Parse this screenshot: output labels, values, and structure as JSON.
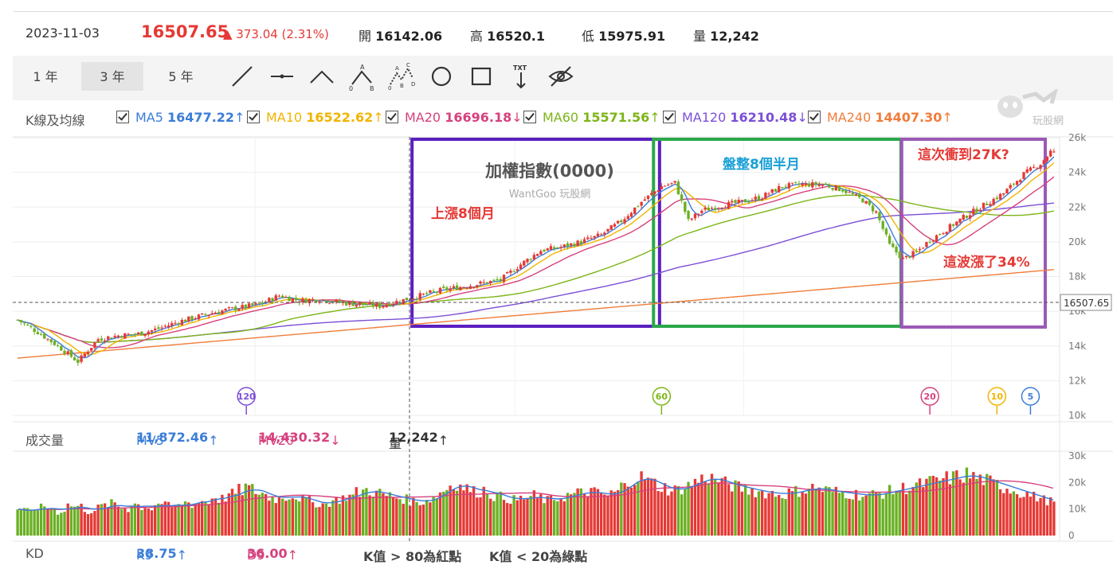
{
  "quote": {
    "date": "2023-11-03",
    "price": "16507.65",
    "change": "▲ 373.04 (2.31%)",
    "open_label": "開",
    "open": "16142.06",
    "high_label": "高",
    "high": "16520.1",
    "low_label": "低",
    "low": "15975.91",
    "volume_label": "量",
    "volume": "12,242"
  },
  "periods": [
    {
      "label": "1 年",
      "active": false
    },
    {
      "label": "3 年",
      "active": true
    },
    {
      "label": "5 年",
      "active": false
    }
  ],
  "tools": [
    "line-tool-icon",
    "horizontal-line-icon",
    "polyline-icon",
    "abc-pattern-icon",
    "abcde-pattern-icon",
    "circle-tool-icon",
    "rectangle-tool-icon",
    "text-tool-icon",
    "hide-drawings-icon"
  ],
  "tool_text": "TXT",
  "tool_abc": [
    "A",
    "0",
    "B"
  ],
  "tool_abcde": [
    "A",
    "C",
    "0",
    "B",
    "D"
  ],
  "ma": {
    "title": "K線及均線",
    "items": [
      {
        "name": "MA5",
        "value": "16477.22",
        "arrow": "↑",
        "color": "#3b7dd8"
      },
      {
        "name": "MA10",
        "value": "16522.62",
        "arrow": "↑",
        "color": "#f0b400"
      },
      {
        "name": "MA20",
        "value": "16696.18",
        "arrow": "↓",
        "color": "#d6417e"
      },
      {
        "name": "MA60",
        "value": "15571.56",
        "arrow": "↑",
        "color": "#7cb518"
      },
      {
        "name": "MA120",
        "value": "16210.48",
        "arrow": "↓",
        "color": "#7b4fd6"
      },
      {
        "name": "MA240",
        "value": "14407.30",
        "arrow": "↑",
        "color": "#f07c3a"
      }
    ]
  },
  "logo_text": "玩股網",
  "volume": {
    "title": "成交量",
    "mv5_label": "MV5",
    "mv5": "11,872.46",
    "mv5_arrow": "↑",
    "mv20_label": "MV20",
    "mv20": "14,430.32",
    "mv20_arrow": "↓",
    "vol_label": "量",
    "vol": "12,242",
    "vol_arrow": "↑"
  },
  "kd": {
    "title": "KD",
    "k_label": "K9",
    "k": "38.75",
    "k_arrow": "↑",
    "d_label": "D9",
    "d": "36.00",
    "d_arrow": "↑",
    "note1": "K值 > 80為紅點",
    "note2": "K值 < 20為綠點"
  },
  "chart_data": {
    "type": "candlestick",
    "price_axis": {
      "ticks": [
        "26k",
        "24k",
        "22k",
        "20k",
        "18k",
        "16k",
        "14k",
        "12k",
        "10k"
      ],
      "range": [
        10000,
        26000
      ]
    },
    "current_price_label": "16507.65",
    "volume_axis": {
      "ticks": [
        "30k",
        "20k",
        "10k",
        "0"
      ],
      "range": [
        0,
        30000
      ]
    },
    "watermark_title": "加權指數(0000)",
    "watermark_sub": "WantGoo 玩股網",
    "ma_markers": [
      {
        "label": "120",
        "color": "#7b4fd6",
        "bar": 72
      },
      {
        "label": "60",
        "color": "#7cb518",
        "bar": 192
      },
      {
        "label": "20",
        "color": "#d6417e",
        "bar": 272
      },
      {
        "label": "10",
        "color": "#f0b400",
        "bar": 292
      },
      {
        "label": "5",
        "color": "#3b7dd8",
        "bar": 302
      }
    ],
    "annotations": [
      {
        "text": "上漲8個月",
        "color": "#e53935"
      },
      {
        "text": "盤整8個半月",
        "color": "#1aa0d8"
      },
      {
        "text": "這次衝到27K?",
        "color": "#e53935"
      },
      {
        "text": "這波漲了34%",
        "color": "#e53935"
      }
    ],
    "boxes": [
      {
        "from_bar": 120,
        "to_bar": 190,
        "color": "#5b1fc0"
      },
      {
        "from_bar": 192,
        "to_bar": 262,
        "color": "#2aa84a"
      },
      {
        "from_bar": 266,
        "to_bar": 305,
        "color": "#9b59b6"
      }
    ],
    "price_path": [
      [
        0,
        15500
      ],
      [
        6,
        14800
      ],
      [
        12,
        14000
      ],
      [
        18,
        13100
      ],
      [
        24,
        14400
      ],
      [
        30,
        14600
      ],
      [
        36,
        14700
      ],
      [
        42,
        15000
      ],
      [
        48,
        15400
      ],
      [
        54,
        15700
      ],
      [
        60,
        16000
      ],
      [
        66,
        16200
      ],
      [
        72,
        16400
      ],
      [
        78,
        16900
      ],
      [
        84,
        16600
      ],
      [
        90,
        16700
      ],
      [
        96,
        16500
      ],
      [
        102,
        16400
      ],
      [
        108,
        16300
      ],
      [
        114,
        16600
      ],
      [
        120,
        16900
      ],
      [
        126,
        17200
      ],
      [
        132,
        17400
      ],
      [
        138,
        17600
      ],
      [
        144,
        17800
      ],
      [
        150,
        18700
      ],
      [
        156,
        19500
      ],
      [
        162,
        19700
      ],
      [
        168,
        20000
      ],
      [
        174,
        20400
      ],
      [
        180,
        21200
      ],
      [
        186,
        22300
      ],
      [
        192,
        23200
      ],
      [
        196,
        23400
      ],
      [
        200,
        21200
      ],
      [
        204,
        21800
      ],
      [
        210,
        22100
      ],
      [
        216,
        22300
      ],
      [
        222,
        22600
      ],
      [
        228,
        23200
      ],
      [
        234,
        23300
      ],
      [
        240,
        23300
      ],
      [
        246,
        23000
      ],
      [
        252,
        22400
      ],
      [
        256,
        21700
      ],
      [
        260,
        19800
      ],
      [
        264,
        19000
      ],
      [
        268,
        19400
      ],
      [
        272,
        20100
      ],
      [
        276,
        20600
      ],
      [
        282,
        21400
      ],
      [
        288,
        22100
      ],
      [
        294,
        22800
      ],
      [
        300,
        23900
      ],
      [
        305,
        24500
      ],
      [
        308,
        25200
      ]
    ],
    "volume_values": [
      10000,
      9500,
      9000,
      9800,
      10500,
      11000,
      10200,
      9600,
      9000,
      10000,
      11500,
      10800,
      11000,
      10000,
      9000,
      9500,
      10400,
      11200,
      11800,
      12000,
      11000,
      10500,
      10000,
      12000,
      11500,
      10800,
      11000,
      10000,
      11800,
      12500,
      11200,
      10600,
      11000,
      12000,
      12500,
      11800,
      12200,
      13500,
      12800,
      14000,
      15000,
      13800,
      14500,
      15500,
      16000,
      17000,
      18500,
      17500,
      16800,
      16000,
      15200,
      14500,
      14000,
      13800,
      14600,
      15200,
      14800,
      14500,
      13500,
      13000,
      12400,
      12000,
      11800,
      12600,
      13200,
      13800,
      14200,
      14800,
      15000,
      16200,
      16800,
      17200,
      16500,
      16000,
      15500,
      15000,
      14800,
      14200,
      14000,
      13500,
      13000,
      12500,
      12800,
      13500,
      14000,
      15000,
      16500,
      18200,
      19000,
      19800,
      18500,
      17800,
      17200,
      16500,
      16800,
      17200,
      15800,
      15000,
      14500,
      14200,
      13800,
      13400,
      13800,
      14200,
      14600,
      15000,
      14200,
      13600,
      13200,
      13800,
      14200,
      14800,
      15200,
      15600,
      16000,
      16400,
      16800,
      16200,
      15800,
      15400,
      15000,
      15800,
      17000,
      18500,
      19800,
      21200,
      22500,
      21800,
      20800,
      19800,
      18800,
      18200,
      17500,
      16800,
      17200,
      18000,
      18800,
      19500,
      20500,
      21200,
      22000,
      21500,
      21000,
      20200,
      19500,
      19000,
      18500,
      18000,
      17800,
      17200,
      16800,
      16500,
      16200,
      16000,
      15800,
      15500,
      15800,
      16200,
      16600,
      17000,
      17400,
      17800,
      18000,
      17600,
      17200,
      16800,
      16500,
      16200,
      16000,
      15800,
      15600,
      15400,
      15200,
      15000,
      15400,
      15800,
      16200,
      16600,
      17000,
      17400,
      17800,
      18200,
      18600,
      19000,
      19400,
      19800,
      20200,
      20600,
      21000,
      21400,
      21800,
      22200,
      22600,
      23000,
      22400,
      21800,
      21200,
      20600,
      20000,
      19400,
      18800,
      18200,
      17600,
      17000,
      16400,
      15800,
      15200,
      14600,
      14000,
      13400,
      12800,
      12242
    ]
  }
}
